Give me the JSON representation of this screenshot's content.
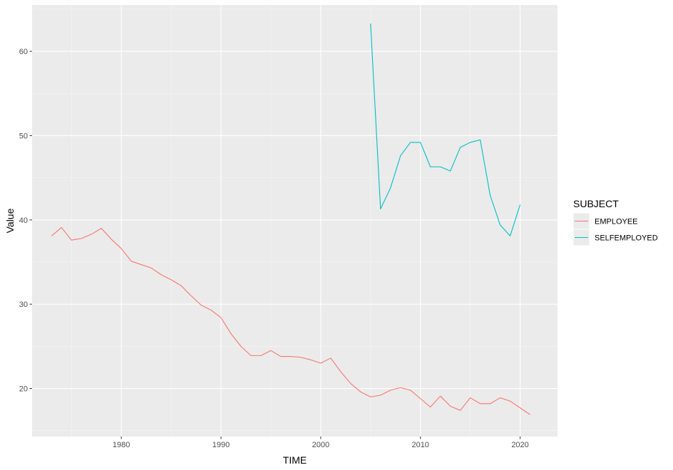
{
  "chart_data": {
    "type": "line",
    "xlabel": "TIME",
    "ylabel": "Value",
    "xlim": [
      1971.05,
      2023.75
    ],
    "ylim": [
      14.3,
      65.5
    ],
    "x_ticks": [
      1980,
      1990,
      2000,
      2010,
      2020
    ],
    "y_ticks": [
      20,
      30,
      40,
      50,
      60
    ],
    "grid": true,
    "legend": {
      "title": "SUBJECT",
      "position": "right"
    },
    "series": [
      {
        "name": "EMPLOYEE",
        "color": "#f8766d",
        "x": [
          1973,
          1974,
          1975,
          1976,
          1977,
          1978,
          1979,
          1980,
          1981,
          1982,
          1983,
          1984,
          1985,
          1986,
          1987,
          1988,
          1989,
          1990,
          1991,
          1992,
          1993,
          1994,
          1995,
          1996,
          1997,
          1998,
          1999,
          2000,
          2001,
          2002,
          2003,
          2004,
          2005,
          2006,
          2007,
          2008,
          2009,
          2010,
          2011,
          2012,
          2013,
          2014,
          2015,
          2016,
          2017,
          2018,
          2019,
          2020,
          2021
        ],
        "y": [
          38.1,
          39.1,
          37.6,
          37.8,
          38.3,
          39.0,
          37.7,
          36.6,
          35.1,
          34.7,
          34.3,
          33.5,
          32.9,
          32.2,
          31.0,
          29.9,
          29.3,
          28.4,
          26.5,
          25.0,
          23.9,
          23.9,
          24.5,
          23.8,
          23.8,
          23.7,
          23.4,
          23.0,
          23.6,
          22.0,
          20.6,
          19.6,
          19.0,
          19.2,
          19.8,
          20.1,
          19.8,
          18.8,
          17.8,
          19.1,
          17.9,
          17.4,
          18.9,
          18.2,
          18.2,
          18.9,
          18.5,
          17.7,
          16.9
        ]
      },
      {
        "name": "SELFEMPLOYED",
        "color": "#00bfc4",
        "x": [
          2005,
          2006,
          2007,
          2008,
          2009,
          2010,
          2011,
          2012,
          2013,
          2014,
          2015,
          2016,
          2017,
          2018,
          2019,
          2020
        ],
        "y": [
          63.3,
          41.3,
          43.8,
          47.6,
          49.2,
          49.2,
          46.3,
          46.3,
          45.8,
          48.6,
          49.2,
          49.5,
          42.9,
          39.4,
          38.1,
          41.8
        ]
      }
    ]
  }
}
